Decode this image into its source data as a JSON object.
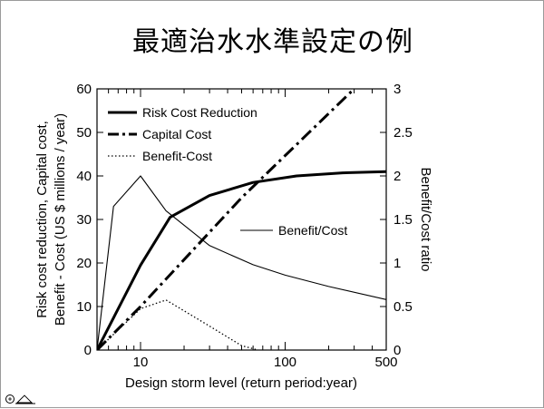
{
  "slide": {
    "title": "最適治水水準設定の例"
  },
  "chart_data": {
    "type": "line",
    "xlabel": "Design storm level (return period:year)",
    "ylabel_left_line1": "Risk cost reduction, Capital cost,",
    "ylabel_left_line2": "Benefit - Cost (US $ millions / year)",
    "ylabel_right": "Benefit/Cost ratio",
    "xscale": "log",
    "xlim": [
      5,
      500
    ],
    "ylim_left": [
      0,
      60
    ],
    "ylim_right": [
      0,
      3
    ],
    "x_ticks": [
      {
        "value": 10,
        "label": "10"
      },
      {
        "value": 100,
        "label": "100"
      },
      {
        "value": 500,
        "label": "500"
      }
    ],
    "y_left_ticks": [
      0,
      10,
      20,
      30,
      40,
      50,
      60
    ],
    "y_right_ticks": [
      "0",
      "0.5",
      "1",
      "1.5",
      "2",
      "2.5",
      "3"
    ],
    "series": [
      {
        "name": "Risk Cost Reduction",
        "axis": "left",
        "style": "solid-thick",
        "x": [
          5,
          10,
          16,
          30,
          60,
          120,
          250,
          500
        ],
        "y": [
          0,
          19.5,
          30.5,
          35.5,
          38.5,
          40,
          40.7,
          41
        ]
      },
      {
        "name": "Capital Cost",
        "axis": "left",
        "style": "dash-dot-thick",
        "x": [
          5,
          10,
          50,
          300
        ],
        "y": [
          0,
          10,
          35,
          60
        ]
      },
      {
        "name": "Benefit-Cost",
        "axis": "left",
        "style": "dotted",
        "x": [
          5,
          10,
          15,
          30,
          50,
          65
        ],
        "y": [
          0,
          9.5,
          11.5,
          5.5,
          1,
          0
        ]
      },
      {
        "name": "Benefit/Cost",
        "axis": "right",
        "style": "solid-thin",
        "x": [
          5,
          6.5,
          10,
          15,
          30,
          60,
          100,
          200,
          500
        ],
        "y": [
          0,
          1.65,
          2,
          1.6,
          1.2,
          0.98,
          0.86,
          0.73,
          0.58
        ]
      }
    ],
    "legend": {
      "placement": "top-left",
      "entries": [
        "Risk Cost Reduction",
        "Capital Cost",
        "Benefit-Cost"
      ]
    },
    "annotations": [
      {
        "text": "Benefit/Cost"
      }
    ],
    "grid": false
  },
  "footer": {
    "icon": "logo-icon"
  },
  "colors": {
    "line": "#000000",
    "background": "#ffffff"
  }
}
